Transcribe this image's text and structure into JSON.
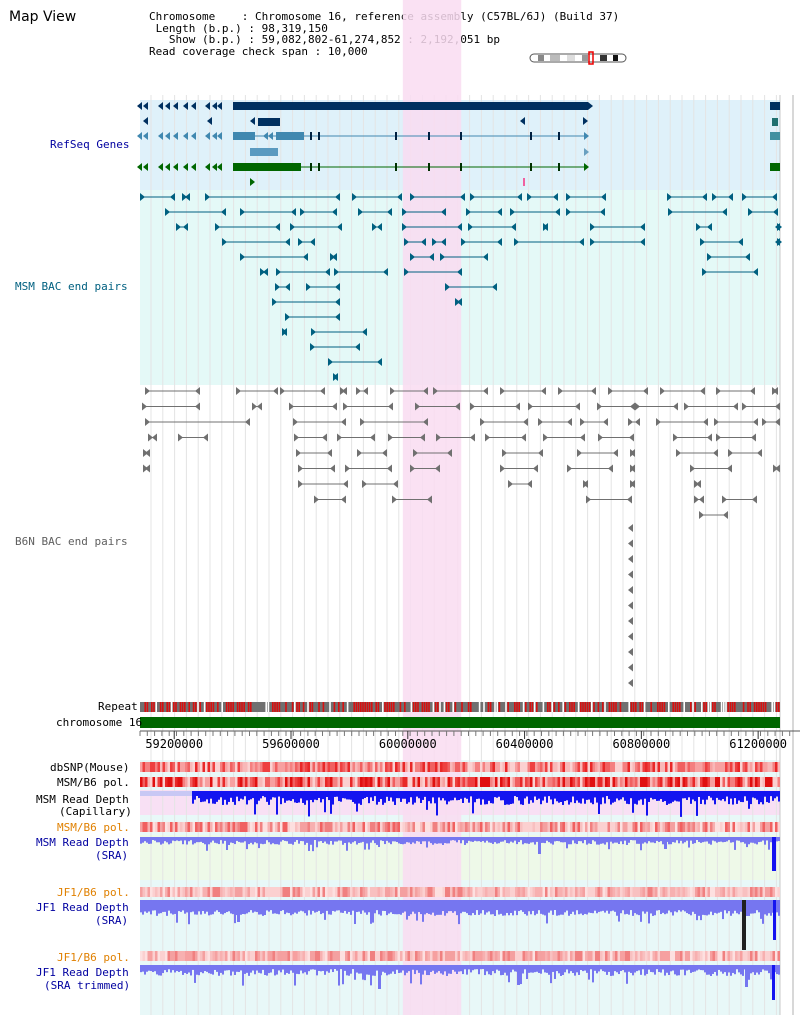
{
  "title": "Map View",
  "header": {
    "chrom_label": "Chromosome",
    "chrom_value": "Chromosome 16, reference assembly (C57BL/6J) (Build 37)",
    "length_label": "Length (b.p.)",
    "length_value": "98,319,150",
    "show_label": "Show (b.p.)",
    "show_value": "59,082,802-61,274,852 : 2,192,051 bp",
    "span_label": "Read coverage check span",
    "span_value": "10,000",
    "sep": ":"
  },
  "tracks": {
    "refseq": "RefSeq Genes",
    "msm_bac": "MSM BAC end pairs",
    "b6n_bac": "B6N BAC end pairs",
    "repeat": "Repeat",
    "chromosome": "chromosome 16",
    "dbsnp": "dbSNP(Mouse)",
    "msm_b6_pol_a": "MSM/B6 pol.",
    "msm_depth_cap_1": "MSM Read Depth",
    "msm_depth_cap_2": "(Capillary)",
    "msm_b6_pol_b": "MSM/B6 pol.",
    "msm_depth_sra_1": "MSM Read Depth",
    "msm_depth_sra_2": "(SRA)",
    "jf1_b6_pol_a": "JF1/B6 pol.",
    "jf1_depth_sra_1": "JF1 Read Depth",
    "jf1_depth_sra_2": "(SRA)",
    "jf1_b6_pol_b": "JF1/B6 pol.",
    "jf1_depth_trim_1": "JF1 Read Depth",
    "jf1_depth_trim_2": "(SRA trimmed)"
  },
  "axis": {
    "ticks": [
      {
        "label": "59200000",
        "pos": 59200000
      },
      {
        "label": "59600000",
        "pos": 59600000
      },
      {
        "label": "60000000",
        "pos": 60000000
      },
      {
        "label": "60400000",
        "pos": 60400000
      },
      {
        "label": "60800000",
        "pos": 60800000
      },
      {
        "label": "61200000",
        "pos": 61200000
      }
    ],
    "range": [
      59082802,
      61274852
    ]
  },
  "highlight": {
    "start": 59983000,
    "end": 60183000
  },
  "colors": {
    "refseq_bg": "#dff1fa",
    "msm_bg": "#e4f9f7",
    "highlight": "#f9dcf1",
    "navy": "#003060",
    "steel": "#4088b0",
    "green": "#006600",
    "teal": "#006080",
    "gray": "#808080",
    "depth_blue": "#1414f0",
    "depth_light": "#7676f0"
  }
}
